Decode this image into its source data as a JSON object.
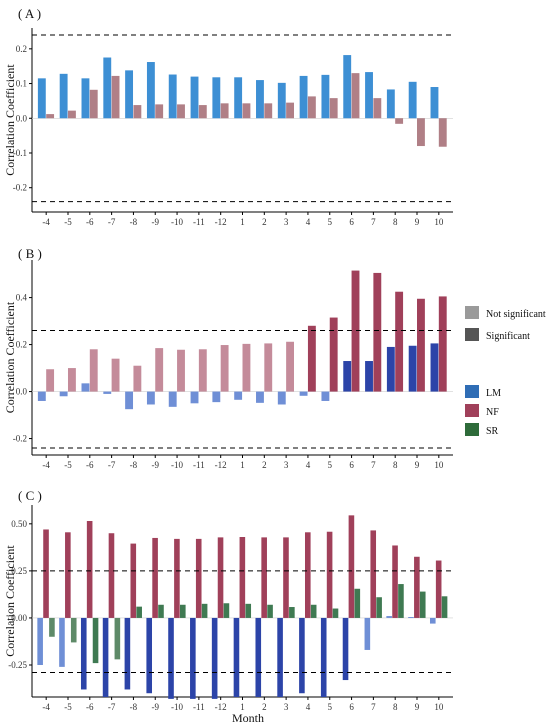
{
  "figure": {
    "x_axis_title": "Month"
  },
  "legend": {
    "significance": [
      {
        "label": "Not significant",
        "color": "#9a9a9a"
      },
      {
        "label": "Significant",
        "color": "#555555"
      }
    ],
    "series": [
      {
        "label": "LM",
        "color": "#2f6db5"
      },
      {
        "label": "NF",
        "color": "#a0405a"
      },
      {
        "label": "SR",
        "color": "#2e6b3a"
      }
    ]
  },
  "chart_data": [
    {
      "type": "bar",
      "panel_label": "( A )",
      "ylabel": "Correlation Coefficient",
      "ylim": [
        -0.27,
        0.26
      ],
      "yticks": [
        -0.2,
        -0.1,
        0.0,
        0.1,
        0.2
      ],
      "ytick_labels": [
        "-0.2",
        "-0.1",
        "0.0",
        "0.1",
        "0.2"
      ],
      "threshold_lines": [
        0.24,
        -0.24
      ],
      "categories": [
        "-4",
        "-5",
        "-6",
        "-7",
        "-8",
        "-9",
        "-10",
        "-11",
        "-12",
        "1",
        "2",
        "3",
        "4",
        "5",
        "6",
        "7",
        "8",
        "9",
        "10"
      ],
      "series": [
        {
          "name": "LM",
          "color": "#3d8fd4",
          "significant": false,
          "values": [
            0.115,
            0.128,
            0.115,
            0.175,
            0.138,
            0.162,
            0.126,
            0.12,
            0.118,
            0.118,
            0.11,
            0.102,
            0.122,
            0.125,
            0.182,
            0.133,
            0.083,
            0.105,
            0.09
          ]
        },
        {
          "name": "NF",
          "color": "#b07f86",
          "significant": false,
          "values": [
            0.012,
            0.022,
            0.082,
            0.122,
            0.038,
            0.04,
            0.04,
            0.038,
            0.043,
            0.043,
            0.043,
            0.045,
            0.063,
            0.058,
            0.13,
            0.058,
            -0.016,
            -0.08,
            -0.082
          ]
        }
      ]
    },
    {
      "type": "bar",
      "panel_label": "( B )",
      "ylabel": "Correlation Coefficient",
      "ylim": [
        -0.27,
        0.56
      ],
      "yticks": [
        -0.2,
        0.0,
        0.2,
        0.4
      ],
      "ytick_labels": [
        "-0.2",
        "0.0",
        "0.2",
        "0.4"
      ],
      "threshold_lines": [
        0.26,
        -0.24
      ],
      "categories": [
        "-4",
        "-5",
        "-6",
        "-7",
        "-8",
        "-9",
        "-10",
        "-11",
        "-12",
        "1",
        "2",
        "3",
        "4",
        "5",
        "6",
        "7",
        "8",
        "9",
        "10"
      ],
      "series": [
        {
          "name": "LM",
          "values": [
            -0.04,
            -0.02,
            0.035,
            -0.01,
            -0.075,
            -0.055,
            -0.065,
            -0.05,
            -0.045,
            -0.035,
            -0.048,
            -0.055,
            -0.018,
            -0.04,
            0.13,
            0.13,
            0.19,
            0.195,
            0.205
          ],
          "significant": [
            false,
            false,
            false,
            false,
            false,
            false,
            false,
            false,
            false,
            false,
            false,
            false,
            false,
            false,
            true,
            true,
            true,
            true,
            true
          ]
        },
        {
          "name": "NF",
          "values": [
            0.095,
            0.1,
            0.18,
            0.14,
            0.11,
            0.185,
            0.178,
            0.18,
            0.198,
            0.203,
            0.205,
            0.212,
            0.28,
            0.315,
            0.515,
            0.505,
            0.425,
            0.395,
            0.405
          ],
          "significant": [
            false,
            false,
            false,
            false,
            false,
            false,
            false,
            false,
            false,
            false,
            false,
            false,
            true,
            true,
            true,
            true,
            true,
            true,
            true
          ]
        }
      ]
    },
    {
      "type": "bar",
      "panel_label": "( C )",
      "ylabel": "Correlation Coefficient",
      "ylim": [
        -0.42,
        0.6
      ],
      "yticks": [
        -0.25,
        0.0,
        0.25,
        0.5
      ],
      "ytick_labels": [
        "-0.25",
        "0.00",
        "0.25",
        "0.50"
      ],
      "threshold_lines": [
        0.25,
        -0.29
      ],
      "categories": [
        "-4",
        "-5",
        "-6",
        "-7",
        "-8",
        "-9",
        "-10",
        "-11",
        "-12",
        "1",
        "2",
        "3",
        "4",
        "5",
        "6",
        "7",
        "8",
        "9",
        "10"
      ],
      "series": [
        {
          "name": "LM",
          "values": [
            -0.25,
            -0.26,
            -0.38,
            -0.42,
            -0.38,
            -0.4,
            -0.43,
            -0.43,
            -0.43,
            -0.42,
            -0.42,
            -0.42,
            -0.4,
            -0.42,
            -0.33,
            -0.17,
            0.01,
            0.005,
            -0.03
          ],
          "significant": [
            false,
            false,
            true,
            true,
            true,
            true,
            true,
            true,
            true,
            true,
            true,
            true,
            true,
            true,
            true,
            false,
            false,
            false,
            false
          ]
        },
        {
          "name": "NF",
          "values": [
            0.47,
            0.455,
            0.515,
            0.45,
            0.395,
            0.425,
            0.42,
            0.42,
            0.428,
            0.43,
            0.428,
            0.428,
            0.455,
            0.458,
            0.545,
            0.465,
            0.385,
            0.325,
            0.305
          ],
          "significant": [
            true,
            true,
            true,
            true,
            true,
            true,
            true,
            true,
            true,
            true,
            true,
            true,
            true,
            true,
            true,
            true,
            true,
            true,
            true
          ]
        },
        {
          "name": "SR",
          "values": [
            -0.1,
            -0.13,
            -0.24,
            -0.22,
            0.06,
            0.07,
            0.07,
            0.075,
            0.078,
            0.075,
            0.07,
            0.058,
            0.07,
            0.05,
            0.155,
            0.11,
            0.18,
            0.14,
            0.115
          ],
          "significant": [
            false,
            false,
            true,
            false,
            true,
            true,
            true,
            true,
            true,
            true,
            true,
            true,
            true,
            true,
            true,
            true,
            true,
            true,
            true
          ]
        }
      ]
    }
  ]
}
